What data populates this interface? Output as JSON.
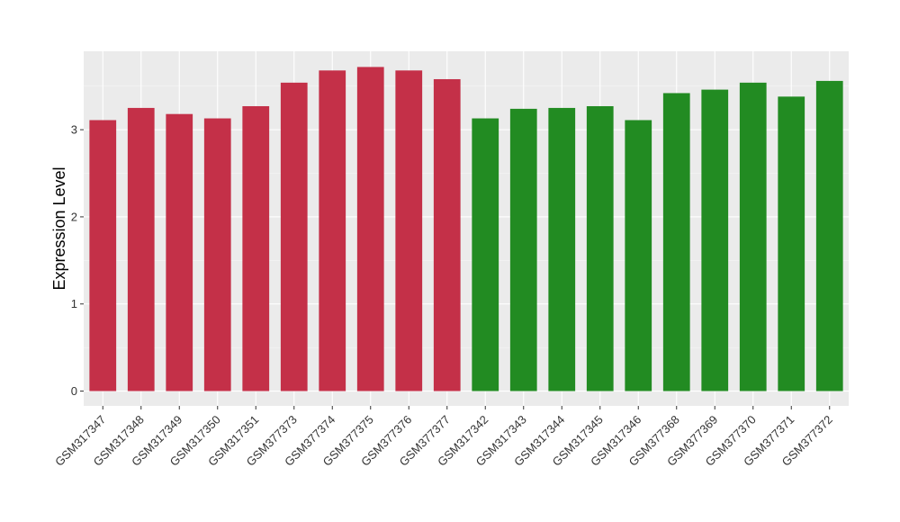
{
  "chart_data": {
    "type": "bar",
    "title": "",
    "xlabel": "",
    "ylabel": "Expression Level",
    "ylim": [
      -0.17,
      3.9
    ],
    "yticks": [
      0,
      1,
      2,
      3
    ],
    "grid": true,
    "background": "#ebebeb",
    "categories": [
      "GSM317347",
      "GSM317348",
      "GSM317349",
      "GSM317350",
      "GSM317351",
      "GSM377373",
      "GSM377374",
      "GSM377375",
      "GSM377376",
      "GSM377377",
      "GSM317342",
      "GSM317343",
      "GSM317344",
      "GSM317345",
      "GSM317346",
      "GSM377368",
      "GSM377369",
      "GSM377370",
      "GSM377371",
      "GSM377372"
    ],
    "values": [
      3.11,
      3.25,
      3.18,
      3.13,
      3.27,
      3.54,
      3.68,
      3.72,
      3.68,
      3.58,
      3.13,
      3.24,
      3.25,
      3.27,
      3.11,
      3.42,
      3.46,
      3.54,
      3.38,
      3.56
    ],
    "colors": [
      "#c43048",
      "#c43048",
      "#c43048",
      "#c43048",
      "#c43048",
      "#c43048",
      "#c43048",
      "#c43048",
      "#c43048",
      "#c43048",
      "#228b22",
      "#228b22",
      "#228b22",
      "#228b22",
      "#228b22",
      "#228b22",
      "#228b22",
      "#228b22",
      "#228b22",
      "#228b22"
    ]
  }
}
